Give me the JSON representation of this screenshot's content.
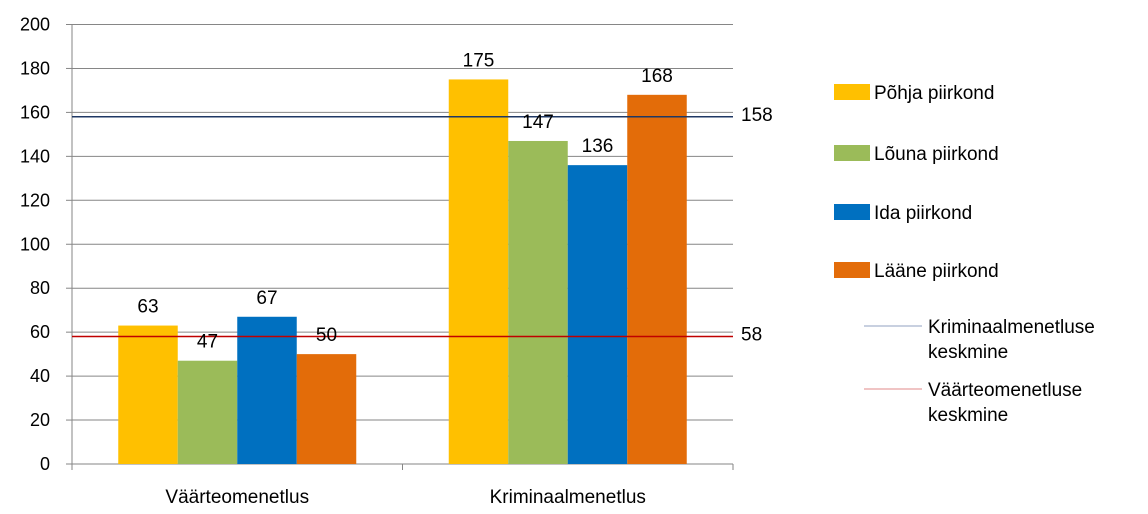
{
  "chart_data": {
    "type": "bar",
    "categories": [
      "Väärteomenetlus",
      "Kriminaalmenetlus"
    ],
    "series": [
      {
        "name": "Põhja piirkond",
        "values": [
          63,
          175
        ],
        "color": "#FFC000"
      },
      {
        "name": "Lõuna piirkond",
        "values": [
          47,
          147
        ],
        "color": "#9BBB59"
      },
      {
        "name": "Ida piirkond",
        "values": [
          67,
          136
        ],
        "color": "#0070C0"
      },
      {
        "name": "Lääne piirkond",
        "values": [
          50,
          168
        ],
        "color": "#E36C09"
      }
    ],
    "reference_lines": [
      {
        "name": "Kriminaalmenetluse keskmine",
        "value": 158,
        "label": "158",
        "color": "#1F3864",
        "legend_color": "#A6B4CD"
      },
      {
        "name": "Väärteomenetluse keskmine",
        "value": 58,
        "label": "58",
        "color": "#C00000",
        "legend_color": "#E8A0A0"
      }
    ],
    "ylim": [
      0,
      200
    ],
    "yticks": [
      0,
      20,
      40,
      60,
      80,
      100,
      120,
      140,
      160,
      180,
      200
    ],
    "grid": true,
    "legend_position": "right",
    "title": "",
    "xlabel": "",
    "ylabel": ""
  }
}
